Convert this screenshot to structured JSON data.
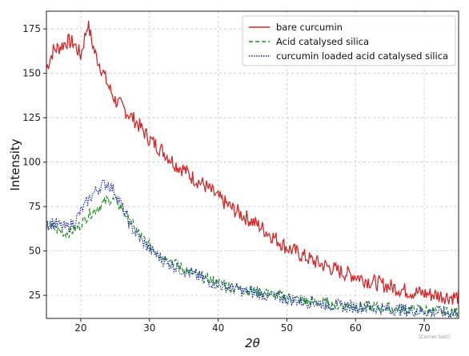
{
  "chart_data": {
    "type": "line",
    "xlabel": "2θ",
    "ylabel": "Intensity",
    "xlim": [
      15,
      75
    ],
    "ylim": [
      12,
      185
    ],
    "xticks": [
      20,
      30,
      40,
      50,
      60,
      70
    ],
    "yticks": [
      25,
      50,
      75,
      100,
      125,
      150,
      175
    ],
    "grid": true,
    "legend_position": "top-right",
    "series": [
      {
        "name": "bare curcumin",
        "color": "#d62728",
        "style": "solid",
        "x": [
          15,
          16,
          17,
          18,
          19,
          20,
          21,
          22,
          23,
          24,
          25,
          26,
          27,
          28,
          29,
          30,
          32,
          34,
          35,
          36,
          38,
          40,
          42,
          44,
          46,
          48,
          50,
          52,
          54,
          56,
          58,
          60,
          62,
          64,
          66,
          68,
          70,
          72,
          74,
          75
        ],
        "y": [
          153,
          163,
          165,
          168,
          167,
          160,
          178,
          162,
          153,
          143,
          135,
          131,
          127,
          123,
          118,
          113,
          106,
          98,
          96,
          92,
          87,
          80,
          74,
          69,
          64,
          58,
          52,
          48,
          44,
          41,
          38,
          36,
          33,
          31,
          29,
          27,
          26,
          25,
          24,
          24
        ]
      },
      {
        "name": "Acid catalysed silica",
        "color": "#1f8a1f",
        "style": "dashed",
        "x": [
          15,
          16,
          17,
          18,
          19,
          20,
          21,
          22,
          23,
          24,
          25,
          26,
          27,
          28,
          29,
          30,
          32,
          34,
          36,
          38,
          40,
          42,
          44,
          46,
          48,
          50,
          52,
          54,
          56,
          58,
          60,
          62,
          64,
          66,
          68,
          70,
          72,
          74,
          75
        ],
        "y": [
          64,
          63,
          61,
          60,
          62,
          65,
          70,
          73,
          76,
          79,
          78,
          74,
          68,
          62,
          57,
          53,
          47,
          42,
          38,
          35,
          32,
          30,
          28,
          27,
          25,
          24,
          22,
          21,
          20,
          19.5,
          19,
          18.5,
          18,
          17.5,
          17,
          16.5,
          16,
          15.5,
          15
        ]
      },
      {
        "name": "curcumin loaded acid catalysed silica",
        "color": "#1c2fa8",
        "style": "dotted",
        "x": [
          15,
          16,
          17,
          18,
          19,
          20,
          21,
          22,
          23,
          24,
          25,
          26,
          27,
          28,
          29,
          30,
          32,
          34,
          36,
          38,
          40,
          42,
          44,
          46,
          48,
          50,
          52,
          54,
          56,
          58,
          60,
          62,
          64,
          66,
          68,
          70,
          72,
          74,
          75
        ],
        "y": [
          65,
          66,
          64,
          63,
          66,
          72,
          78,
          83,
          87,
          88,
          83,
          75,
          66,
          60,
          55,
          51,
          45,
          41,
          37,
          34,
          31,
          29,
          27,
          26,
          24,
          23,
          22,
          21,
          20,
          19,
          18.5,
          18,
          17.5,
          17,
          16.5,
          16,
          15.5,
          15,
          15
        ]
      }
    ]
  },
  "watermark": "[Corner text]"
}
